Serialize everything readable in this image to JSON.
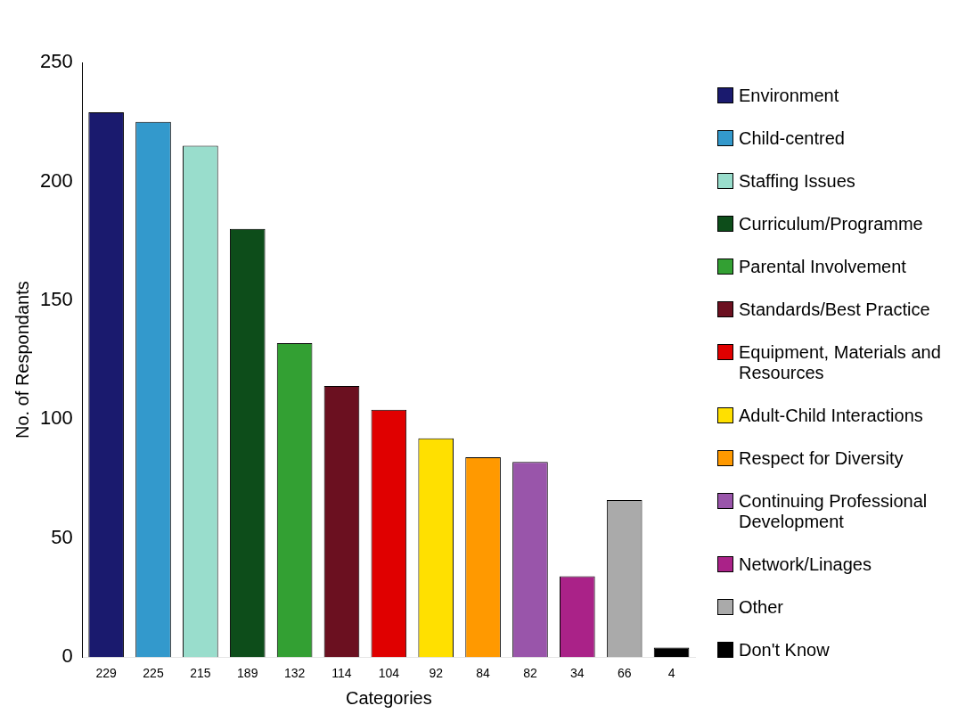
{
  "chart_data": {
    "type": "bar",
    "xlabel": "Categories",
    "ylabel": "No. of Respondants",
    "categories": [
      "229",
      "225",
      "215",
      "189",
      "132",
      "114",
      "104",
      "92",
      "84",
      "82",
      "34",
      "66",
      "4"
    ],
    "series": [
      {
        "name": "Environment",
        "color": "#1a1a6e",
        "values": [
          229,
          null,
          null,
          null,
          null,
          null,
          null,
          null,
          null,
          null,
          null,
          null,
          null
        ]
      },
      {
        "name": "Child-centred",
        "color": "#3399cc",
        "values": [
          null,
          225,
          null,
          null,
          null,
          null,
          null,
          null,
          null,
          null,
          null,
          null,
          null
        ]
      },
      {
        "name": "Staffing Issues",
        "color": "#99ddcc",
        "values": [
          null,
          null,
          215,
          null,
          null,
          null,
          null,
          null,
          null,
          null,
          null,
          null,
          null
        ]
      },
      {
        "name": "Curriculum/Programme",
        "color": "#0d4d1a",
        "values": [
          null,
          null,
          null,
          180,
          null,
          null,
          null,
          null,
          null,
          null,
          null,
          null,
          null
        ]
      },
      {
        "name": "Parental Involvement",
        "color": "#33a033",
        "values": [
          null,
          null,
          null,
          null,
          132,
          null,
          null,
          null,
          null,
          null,
          null,
          null,
          null
        ]
      },
      {
        "name": "Standards/Best Practice",
        "color": "#6b1020",
        "values": [
          null,
          null,
          null,
          null,
          null,
          114,
          null,
          null,
          null,
          null,
          null,
          null,
          null
        ]
      },
      {
        "name": "Equipment, Materials and Resources",
        "color": "#e00000",
        "values": [
          null,
          null,
          null,
          null,
          null,
          null,
          104,
          null,
          null,
          null,
          null,
          null,
          null
        ]
      },
      {
        "name": "Adult-Child Interactions",
        "color": "#ffe000",
        "values": [
          null,
          null,
          null,
          null,
          null,
          null,
          null,
          92,
          null,
          null,
          null,
          null,
          null
        ]
      },
      {
        "name": "Respect for Diversity",
        "color": "#ff9900",
        "values": [
          null,
          null,
          null,
          null,
          null,
          null,
          null,
          null,
          84,
          null,
          null,
          null,
          null
        ]
      },
      {
        "name": "Continuing Professional Development",
        "color": "#9955aa",
        "values": [
          null,
          null,
          null,
          null,
          null,
          null,
          null,
          null,
          null,
          82,
          null,
          null,
          null
        ]
      },
      {
        "name": "Network/Linages",
        "color": "#aa2288",
        "values": [
          null,
          null,
          null,
          null,
          null,
          null,
          null,
          null,
          null,
          null,
          34,
          null,
          null
        ]
      },
      {
        "name": "Other",
        "color": "#aaaaaa",
        "values": [
          null,
          null,
          null,
          null,
          null,
          null,
          null,
          null,
          null,
          null,
          null,
          66,
          null
        ]
      },
      {
        "name": "Don't Know",
        "color": "#000000",
        "values": [
          null,
          null,
          null,
          null,
          null,
          null,
          null,
          null,
          null,
          null,
          null,
          null,
          4
        ]
      }
    ],
    "ylim": [
      0,
      250
    ],
    "yticks": [
      0,
      50,
      100,
      150,
      200,
      250
    ],
    "grid": false,
    "legend": "right"
  }
}
